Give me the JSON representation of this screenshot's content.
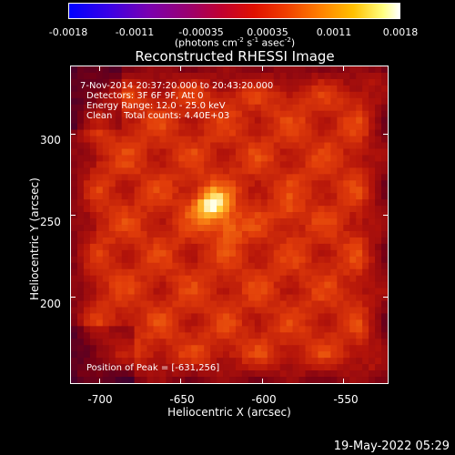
{
  "colorbar": {
    "ticks": [
      "-0.0018",
      "-0.0011",
      "-0.00035",
      "0.00035",
      "0.0011",
      "0.0018"
    ],
    "unit_text": "(photons cm",
    "unit_exp1": "-2",
    "unit_mid1": " s",
    "unit_exp2": "-1",
    "unit_mid2": " asec",
    "unit_exp3": "-2",
    "unit_end": ")"
  },
  "chart_data": {
    "type": "heatmap",
    "title": "Reconstructed RHESSI Image",
    "xlabel": "Heliocentric X (arcsec)",
    "ylabel": "Heliocentric Y (arcsec)",
    "xlim": [
      -718,
      -522
    ],
    "ylim": [
      146,
      342
    ],
    "xticks": [
      "-700",
      "-650",
      "-600",
      "-550"
    ],
    "yticks": [
      "300",
      "250",
      "200"
    ],
    "xtick_values": [
      -700,
      -650,
      -600,
      -550
    ],
    "ytick_values": [
      300,
      250,
      200
    ],
    "color_range": [
      -0.0018,
      0.0018
    ],
    "peak": [
      -631,
      256
    ],
    "annotations": [
      "7-Nov-2014 20:37:20.000 to 20:43:20.000",
      "Detectors: 3F 6F 9F, Att 0",
      "Energy Range: 12.0 - 25.0 keV",
      "Clean    Total counts: 4.40E+03",
      "Position of Peak = [-631,256]"
    ],
    "colors": {
      "peak": "#ffffe0",
      "background": "#b01808"
    }
  },
  "footer": "19-May-2022 05:29"
}
